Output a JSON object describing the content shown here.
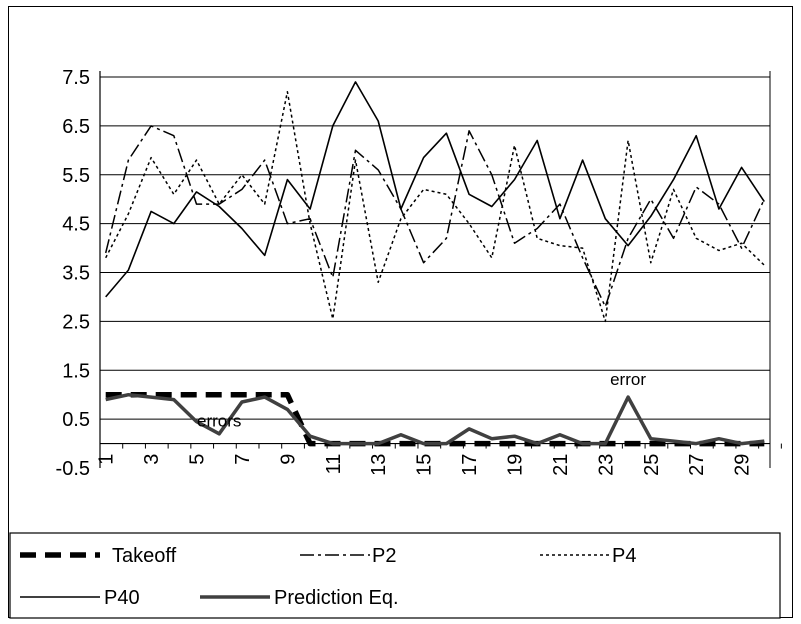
{
  "chart_data": {
    "type": "line",
    "x": [
      1,
      2,
      3,
      4,
      5,
      6,
      7,
      8,
      9,
      10,
      11,
      12,
      13,
      14,
      15,
      16,
      17,
      18,
      19,
      20,
      21,
      22,
      23,
      24,
      25,
      26,
      27,
      28,
      29,
      30
    ],
    "x_tick_labels": [
      "1",
      "3",
      "5",
      "7",
      "9",
      "11",
      "13",
      "15",
      "17",
      "19",
      "21",
      "23",
      "25",
      "27",
      "29"
    ],
    "x_tick_values": [
      1,
      3,
      5,
      7,
      9,
      11,
      13,
      15,
      17,
      19,
      21,
      23,
      25,
      27,
      29
    ],
    "y_tick_labels": [
      "-0.5",
      "0.5",
      "1.5",
      "2.5",
      "3.5",
      "4.5",
      "5.5",
      "6.5",
      "7.5"
    ],
    "ylim": [
      -0.5,
      7.5
    ],
    "grid": "horizontal",
    "legend_position": "bottom",
    "annotations": [
      {
        "text": "errors",
        "x": 6,
        "y": 0.35
      },
      {
        "text": "error",
        "x": 24,
        "y": 1.2
      }
    ],
    "series": [
      {
        "name": "Takeoff",
        "style": "heavy-dash",
        "color": "#000000",
        "values": [
          1,
          1,
          1,
          1,
          1,
          1,
          1,
          1,
          1,
          0,
          0,
          0,
          0,
          0,
          0,
          0,
          0,
          0,
          0,
          0,
          0,
          0,
          0,
          0,
          0,
          0,
          0,
          0,
          0,
          0
        ]
      },
      {
        "name": "P2",
        "style": "dash-dot",
        "color": "#000000",
        "values": [
          3.9,
          5.8,
          6.5,
          6.3,
          4.9,
          4.9,
          5.2,
          5.8,
          4.5,
          4.6,
          3.4,
          6.0,
          5.6,
          4.8,
          3.7,
          4.2,
          6.4,
          5.5,
          4.1,
          4.4,
          4.9,
          3.8,
          2.8,
          4.2,
          5.0,
          4.2,
          5.25,
          4.9,
          4.0,
          5.0
        ]
      },
      {
        "name": "P4",
        "style": "dot",
        "color": "#000000",
        "values": [
          3.8,
          4.7,
          5.85,
          5.1,
          5.8,
          4.9,
          5.5,
          4.9,
          7.2,
          4.5,
          2.55,
          5.8,
          3.3,
          4.6,
          5.2,
          5.1,
          4.5,
          3.8,
          6.1,
          4.2,
          4.05,
          4.0,
          2.5,
          6.2,
          3.7,
          5.2,
          4.2,
          3.95,
          4.1,
          3.65
        ]
      },
      {
        "name": "P40",
        "style": "solid-thin",
        "color": "#000000",
        "values": [
          3.0,
          3.55,
          4.75,
          4.5,
          5.15,
          4.85,
          4.4,
          3.85,
          5.4,
          4.8,
          6.5,
          7.4,
          6.6,
          4.8,
          5.85,
          6.35,
          5.1,
          4.85,
          5.4,
          6.2,
          4.6,
          5.8,
          4.6,
          4.05,
          4.65,
          5.4,
          6.3,
          4.8,
          5.65,
          4.95
        ]
      },
      {
        "name": "Prediction Eq.",
        "style": "solid-thick",
        "color": "#404040",
        "values": [
          0.9,
          1.0,
          0.95,
          0.9,
          0.45,
          0.2,
          0.85,
          0.95,
          0.7,
          0.15,
          0.0,
          0.0,
          0.0,
          0.18,
          0.0,
          0.0,
          0.3,
          0.1,
          0.15,
          0.0,
          0.18,
          0.0,
          0.0,
          0.95,
          0.1,
          0.05,
          0.0,
          0.1,
          0.0,
          0.05
        ]
      }
    ]
  }
}
